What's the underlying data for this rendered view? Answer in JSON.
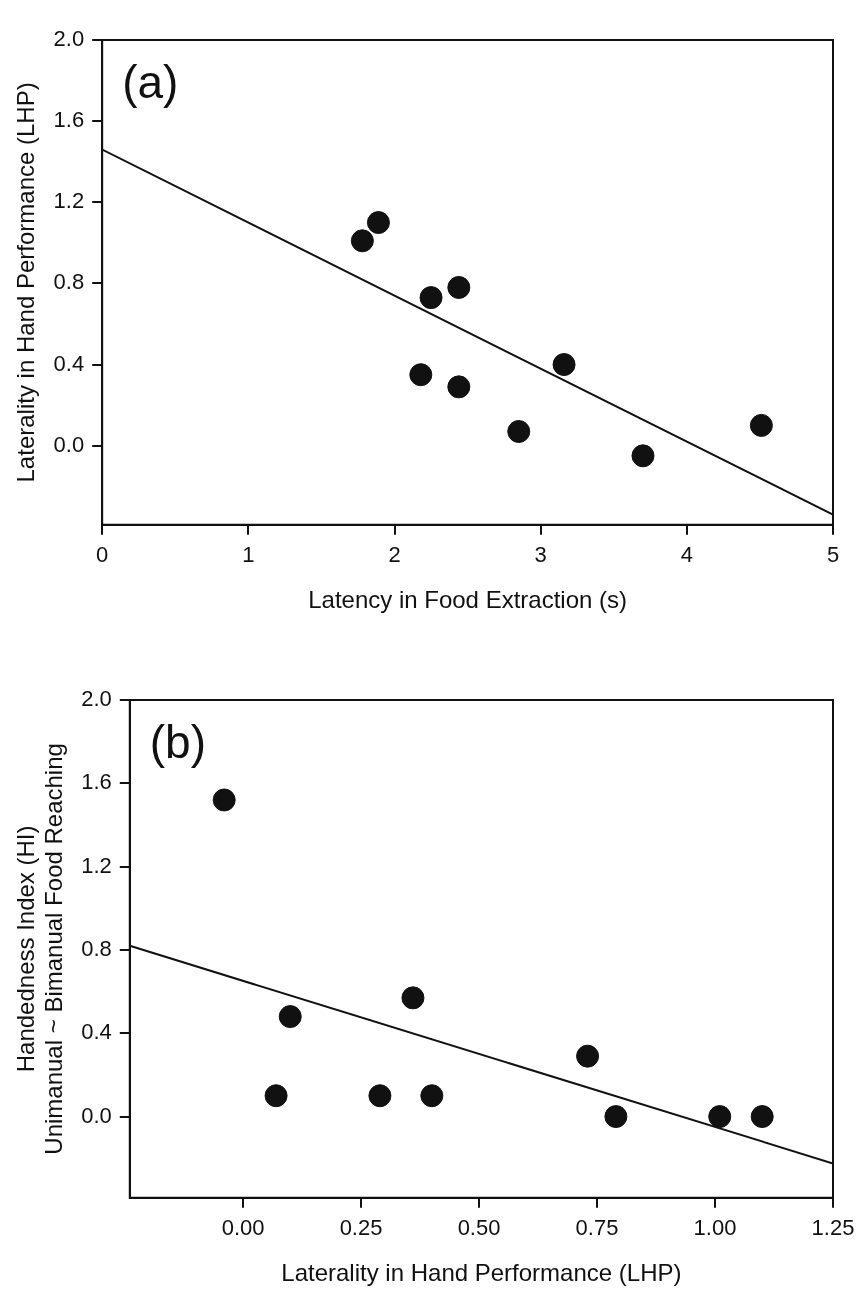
{
  "chart_data": [
    {
      "type": "scatter",
      "xlabel": "Latency in Food Extraction (s)",
      "ylabel": "Laterality in Hand Performance (LHP)",
      "annotations": [
        "(a)"
      ],
      "xlim": [
        0,
        5
      ],
      "xticks": [
        0,
        1,
        2,
        3,
        4,
        5
      ],
      "ylim": [
        -0.39,
        2.0
      ],
      "yticks": [
        {
          "value": 0,
          "label": "0.0"
        },
        {
          "value": 0.4,
          "label": "0.4"
        },
        {
          "value": 0.8,
          "label": "0.8"
        },
        {
          "value": 1.2,
          "label": "1.2"
        },
        {
          "value": 1.6,
          "label": "1.6"
        },
        {
          "value": 2,
          "label": "2.0"
        }
      ],
      "grid": false,
      "legend": false,
      "series": [
        {
          "marker": "circle",
          "color": "#111111",
          "x": [
            1.78,
            1.89,
            2.25,
            2.44,
            2.18,
            2.44,
            3.16,
            2.85,
            3.7,
            4.51
          ],
          "values": [
            1.01,
            1.1,
            0.73,
            0.78,
            0.35,
            0.29,
            0.4,
            0.07,
            -0.05,
            0.1
          ]
        },
        {
          "type": "line",
          "marker": "none",
          "color": "#111111",
          "x": [
            0,
            5
          ],
          "values": [
            1.46,
            -0.34
          ]
        }
      ]
    },
    {
      "type": "scatter",
      "xlabel": "Laterality in Hand Performance (LHP)",
      "ylabel": "Handedness Index (HI)\nUnimanual ~ Bimanual Food Reaching",
      "annotations": [
        "(b)"
      ],
      "xlim": [
        -0.24,
        1.25
      ],
      "xticks": [
        {
          "value": 0,
          "label": "0.00"
        },
        {
          "value": 0.25,
          "label": "0.25"
        },
        {
          "value": 0.5,
          "label": "0.50"
        },
        {
          "value": 0.75,
          "label": "0.75"
        },
        {
          "value": 1,
          "label": "1.00"
        },
        {
          "value": 1.25,
          "label": "1.25"
        }
      ],
      "ylim": [
        -0.39,
        2.0
      ],
      "yticks": [
        {
          "value": 0,
          "label": "0.0"
        },
        {
          "value": 0.4,
          "label": "0.4"
        },
        {
          "value": 0.8,
          "label": "0.8"
        },
        {
          "value": 1.2,
          "label": "1.2"
        },
        {
          "value": 1.6,
          "label": "1.6"
        },
        {
          "value": 2,
          "label": "2.0"
        }
      ],
      "grid": false,
      "legend": false,
      "series": [
        {
          "marker": "circle",
          "color": "#111111",
          "x": [
            -0.04,
            0.07,
            0.1,
            0.29,
            0.36,
            0.4,
            0.73,
            0.79,
            1.01,
            1.1
          ],
          "values": [
            1.52,
            0.1,
            0.48,
            0.1,
            0.57,
            0.1,
            0.29,
            0,
            0,
            0
          ]
        },
        {
          "type": "line",
          "marker": "none",
          "color": "#111111",
          "x": [
            -0.24,
            1.25
          ],
          "values": [
            0.82,
            -0.225
          ]
        }
      ]
    }
  ]
}
